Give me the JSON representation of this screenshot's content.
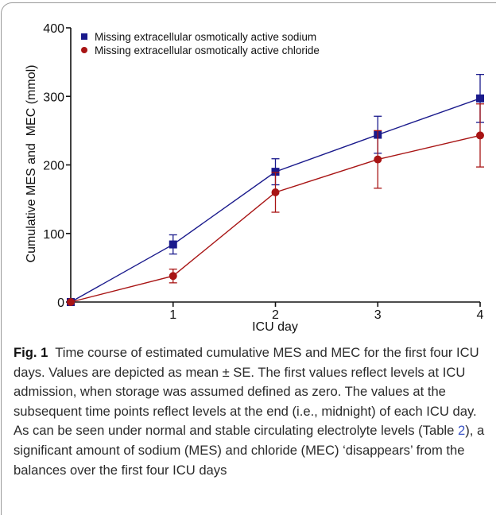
{
  "chart_data": {
    "type": "line",
    "x": [
      0,
      1,
      2,
      3,
      4
    ],
    "xticks": [
      "1",
      "2",
      "3",
      "4"
    ],
    "yticks": [
      "0",
      "100",
      "200",
      "300",
      "400"
    ],
    "xlabel": "ICU day",
    "ylabel": "Cumulative MES and  MEC (mmol)",
    "xlim": [
      0,
      4
    ],
    "ylim": [
      0,
      400
    ],
    "grid": false,
    "legend": "top-left",
    "series": [
      {
        "name": "Missing extracellular osmotically active sodium",
        "marker": "square",
        "color": "#1a1a8c",
        "values": [
          0,
          84,
          190,
          244,
          297
        ],
        "error": [
          0,
          14,
          19,
          27,
          35
        ]
      },
      {
        "name": "Missing extracellular osmotically active chloride",
        "marker": "circle",
        "color": "#a81414",
        "values": [
          0,
          38,
          160,
          208,
          243
        ],
        "error": [
          0,
          10,
          29,
          42,
          46
        ]
      }
    ]
  },
  "caption": {
    "label": "Fig. 1",
    "text_before": "  Time course of estimated cumulative MES and MEC for the first four ICU days. Values are depicted as mean ± SE. The first values reflect levels at ICU admission, when storage was assumed defined as zero. The values at the subsequent time points reflect levels at the end (i.e., midnight) of each ICU day. As can be seen under normal and stable circulating electrolyte levels (Table ",
    "table_ref": "2",
    "text_after": "), a significant amount of sodium (MES) and chloride (MEC) ‘disappears’ from the balances over the first four ICU days"
  }
}
